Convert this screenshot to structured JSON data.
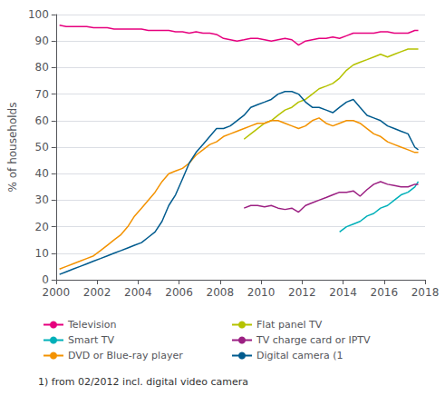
{
  "chart_data": {
    "type": "line",
    "ylabel": "% of households",
    "footnote": "1) from 02/2012 incl. digital video camera",
    "xlim": [
      2000,
      2018
    ],
    "ylim": [
      0,
      100
    ],
    "xticks": [
      2000,
      2002,
      2004,
      2006,
      2008,
      2010,
      2012,
      2014,
      2016,
      2018
    ],
    "yticks": [
      0,
      10,
      20,
      30,
      40,
      50,
      60,
      70,
      80,
      90,
      100
    ],
    "grid": true,
    "legend": "bottom",
    "series": [
      {
        "name": "Television",
        "color": "#e6007e",
        "x": [
          2000.17,
          2000.5,
          2000.83,
          2001.17,
          2001.5,
          2001.83,
          2002.17,
          2002.5,
          2002.83,
          2003.17,
          2003.5,
          2003.83,
          2004.17,
          2004.5,
          2004.83,
          2005.17,
          2005.5,
          2005.83,
          2006.17,
          2006.5,
          2006.83,
          2007.17,
          2007.5,
          2007.83,
          2008.17,
          2008.5,
          2008.83,
          2009.17,
          2009.5,
          2009.83,
          2010.17,
          2010.5,
          2010.83,
          2011.17,
          2011.5,
          2011.83,
          2012.17,
          2012.5,
          2012.83,
          2013.17,
          2013.5,
          2013.83,
          2014.17,
          2014.5,
          2014.83,
          2015.17,
          2015.5,
          2015.83,
          2016.17,
          2016.5,
          2016.83,
          2017.17,
          2017.5,
          2017.67
        ],
        "values": [
          96,
          95.5,
          95.5,
          95.5,
          95.5,
          95,
          95,
          95,
          94.5,
          94.5,
          94.5,
          94.5,
          94.5,
          94,
          94,
          94,
          94,
          93.5,
          93.5,
          93,
          93.5,
          93,
          93,
          92.5,
          91,
          90.5,
          90,
          90.5,
          91,
          91,
          90.5,
          90,
          90.5,
          91,
          90.5,
          88.5,
          90,
          90.5,
          91,
          91,
          91.5,
          91,
          92,
          93,
          93,
          93,
          93,
          93.5,
          93.5,
          93,
          93,
          93,
          94,
          94
        ]
      },
      {
        "name": "Flat panel TV",
        "color": "#b5c200",
        "x": [
          2009.17,
          2009.5,
          2009.83,
          2010.17,
          2010.5,
          2010.83,
          2011.17,
          2011.5,
          2011.83,
          2012.17,
          2012.5,
          2012.83,
          2013.17,
          2013.5,
          2013.83,
          2014.17,
          2014.5,
          2014.83,
          2015.17,
          2015.5,
          2015.83,
          2016.17,
          2016.5,
          2016.83,
          2017.17,
          2017.5,
          2017.67
        ],
        "values": [
          53,
          55,
          57,
          59,
          60,
          62,
          64,
          65,
          67,
          68,
          70,
          72,
          73,
          74,
          76,
          79,
          81,
          82,
          83,
          84,
          85,
          84,
          85,
          86,
          87,
          87,
          87
        ]
      },
      {
        "name": "Smart TV",
        "color": "#00b0b9",
        "x": [
          2013.83,
          2014.17,
          2014.5,
          2014.83,
          2015.17,
          2015.5,
          2015.83,
          2016.17,
          2016.5,
          2016.83,
          2017.17,
          2017.5,
          2017.67
        ],
        "values": [
          18,
          20,
          21,
          22,
          24,
          25,
          27,
          28,
          30,
          32,
          33,
          35,
          37
        ]
      },
      {
        "name": "TV charge card or IPTV",
        "color": "#9b1f82",
        "x": [
          2009.17,
          2009.5,
          2009.83,
          2010.17,
          2010.5,
          2010.83,
          2011.17,
          2011.5,
          2011.83,
          2012.17,
          2012.5,
          2012.83,
          2013.17,
          2013.5,
          2013.83,
          2014.17,
          2014.5,
          2014.83,
          2015.17,
          2015.5,
          2015.83,
          2016.17,
          2016.5,
          2016.83,
          2017.17,
          2017.5,
          2017.67
        ],
        "values": [
          27,
          28,
          28,
          27.5,
          28,
          27,
          26.5,
          27,
          25.5,
          28,
          29,
          30,
          31,
          32,
          33,
          33,
          33.5,
          31.5,
          34,
          36,
          37,
          36,
          35.5,
          35,
          35,
          36,
          36
        ]
      },
      {
        "name": "DVD or Blue-ray player",
        "color": "#f39200",
        "x": [
          2000.17,
          2000.5,
          2000.83,
          2001.17,
          2001.5,
          2001.83,
          2002.17,
          2002.5,
          2002.83,
          2003.17,
          2003.5,
          2003.83,
          2004.17,
          2004.5,
          2004.83,
          2005.17,
          2005.5,
          2005.83,
          2006.17,
          2006.5,
          2006.83,
          2007.17,
          2007.5,
          2007.83,
          2008.17,
          2008.5,
          2008.83,
          2009.17,
          2009.5,
          2009.83,
          2010.17,
          2010.5,
          2010.83,
          2011.17,
          2011.5,
          2011.83,
          2012.17,
          2012.5,
          2012.83,
          2013.17,
          2013.5,
          2013.83,
          2014.17,
          2014.5,
          2014.83,
          2015.17,
          2015.5,
          2015.83,
          2016.17,
          2016.5,
          2016.83,
          2017.17,
          2017.5,
          2017.67
        ],
        "values": [
          4,
          5,
          6,
          7,
          8,
          9,
          11,
          13,
          15,
          17,
          20,
          24,
          27,
          30,
          33,
          37,
          40,
          41,
          42,
          44,
          47,
          49,
          51,
          52,
          54,
          55,
          56,
          57,
          58,
          59,
          59,
          60,
          60,
          59,
          58,
          57,
          58,
          60,
          61,
          59,
          58,
          59,
          60,
          60,
          59,
          57,
          55,
          54,
          52,
          51,
          50,
          49,
          48,
          48
        ]
      },
      {
        "name": "Digital camera (1",
        "color": "#005b8e",
        "x": [
          2000.17,
          2000.5,
          2000.83,
          2001.17,
          2001.5,
          2001.83,
          2002.17,
          2002.5,
          2002.83,
          2003.17,
          2003.5,
          2003.83,
          2004.17,
          2004.5,
          2004.83,
          2005.17,
          2005.5,
          2005.83,
          2006.17,
          2006.5,
          2006.83,
          2007.17,
          2007.5,
          2007.83,
          2008.17,
          2008.5,
          2008.83,
          2009.17,
          2009.5,
          2009.83,
          2010.17,
          2010.5,
          2010.83,
          2011.17,
          2011.5,
          2011.83,
          2012.17,
          2012.5,
          2012.83,
          2013.17,
          2013.5,
          2013.83,
          2014.17,
          2014.5,
          2014.83,
          2015.17,
          2015.5,
          2015.83,
          2016.17,
          2016.5,
          2016.83,
          2017.17,
          2017.5,
          2017.67
        ],
        "values": [
          2,
          3,
          4,
          5,
          6,
          7,
          8,
          9,
          10,
          11,
          12,
          13,
          14,
          16,
          18,
          22,
          28,
          32,
          38,
          44,
          48,
          51,
          54,
          57,
          57,
          58,
          60,
          62,
          65,
          66,
          67,
          68,
          70,
          71,
          71,
          70,
          67,
          65,
          65,
          64,
          63,
          65,
          67,
          68,
          65,
          62,
          61,
          60,
          58,
          57,
          56,
          55,
          50,
          49
        ]
      }
    ]
  }
}
